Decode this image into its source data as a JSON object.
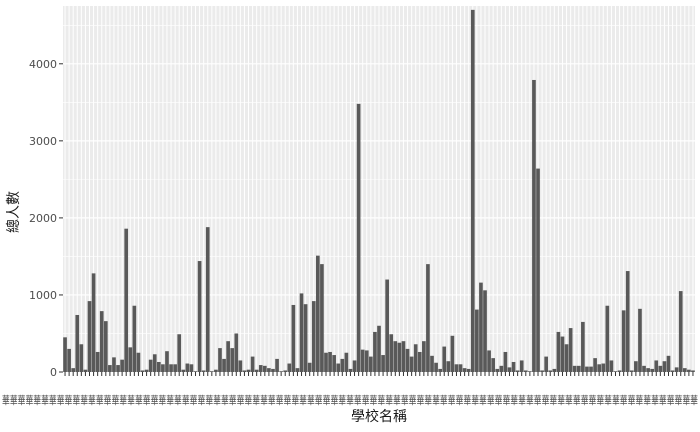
{
  "chart_data": {
    "type": "bar",
    "title": "",
    "xlabel": "學校名稱",
    "ylabel": "總人數",
    "ylim": [
      0,
      4750
    ],
    "yticks": [
      0,
      1000,
      2000,
      3000,
      4000
    ],
    "grid": true,
    "bar_color": "#595959",
    "panel_color": "#ebebeb",
    "x_tick_text": "華華華華華華華華華華華華華華華華華華華華華華華華華華華華華華華華華華華華華華華華華華華華華華華華華華華華華華華華華華華華華華華華華華華華華華華華華華華華華華華華華華華華華華華華華",
    "values": [
      450,
      300,
      50,
      740,
      360,
      30,
      920,
      1280,
      260,
      790,
      660,
      90,
      190,
      90,
      160,
      1860,
      320,
      860,
      250,
      20,
      30,
      160,
      230,
      130,
      100,
      270,
      100,
      100,
      490,
      30,
      110,
      100,
      10,
      1440,
      20,
      1880,
      10,
      30,
      310,
      170,
      400,
      310,
      500,
      150,
      20,
      30,
      200,
      30,
      90,
      80,
      50,
      40,
      170,
      10,
      20,
      110,
      870,
      50,
      1020,
      880,
      120,
      920,
      1510,
      1400,
      250,
      260,
      220,
      110,
      170,
      250,
      40,
      150,
      3480,
      290,
      280,
      200,
      520,
      600,
      220,
      1200,
      490,
      400,
      380,
      400,
      300,
      200,
      360,
      260,
      400,
      1400,
      210,
      120,
      40,
      330,
      140,
      470,
      100,
      100,
      50,
      40,
      4700,
      810,
      1160,
      1060,
      280,
      180,
      40,
      80,
      260,
      60,
      130,
      20,
      150,
      20,
      10,
      3790,
      2640,
      20,
      200,
      20,
      40,
      520,
      460,
      360,
      570,
      80,
      80,
      650,
      70,
      70,
      180,
      100,
      110,
      860,
      150,
      10,
      20,
      800,
      1310,
      20,
      140,
      820,
      80,
      50,
      40,
      150,
      80,
      140,
      210,
      20,
      60,
      1050,
      50,
      30,
      20
    ]
  }
}
